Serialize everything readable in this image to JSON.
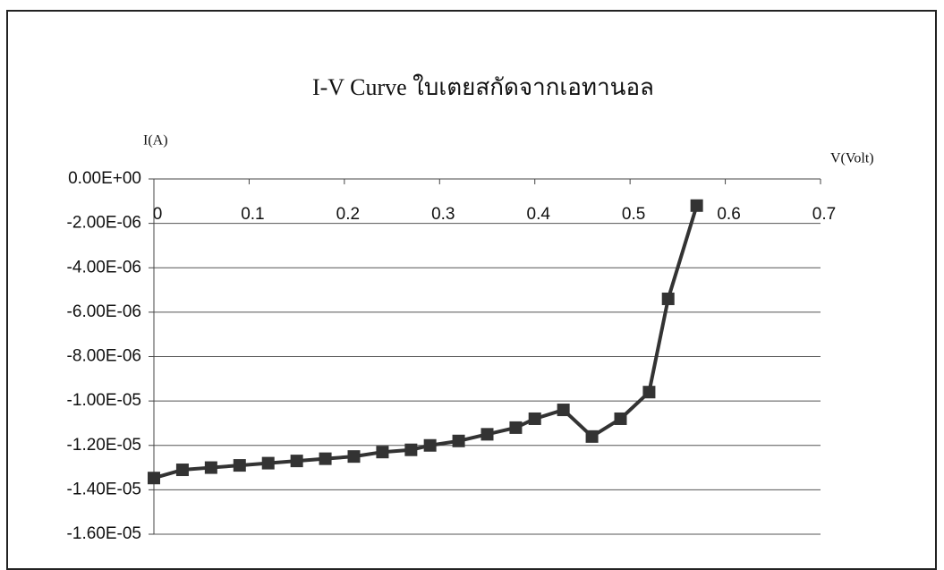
{
  "chart_data": {
    "type": "line",
    "title": "I-V Curve ใบเตยสกัดจากเอทานอล",
    "y_label": "I(A)",
    "x_label": "V(Volt)",
    "x": [
      0,
      0.03,
      0.06,
      0.09,
      0.12,
      0.15,
      0.18,
      0.21,
      0.24,
      0.27,
      0.29,
      0.32,
      0.35,
      0.38,
      0.4,
      0.43,
      0.46,
      0.49,
      0.52,
      0.54,
      0.57
    ],
    "series": [
      {
        "name": "I(A)",
        "color": "#333333",
        "values": [
          -1.347e-05,
          -1.31e-05,
          -1.3e-05,
          -1.29e-05,
          -1.28e-05,
          -1.27e-05,
          -1.26e-05,
          -1.25e-05,
          -1.23e-05,
          -1.22e-05,
          -1.2e-05,
          -1.18e-05,
          -1.15e-05,
          -1.12e-05,
          -1.08e-05,
          -1.04e-05,
          -1.16e-05,
          -1.08e-05,
          -9.6e-06,
          -5.4e-06,
          -1.2e-06
        ]
      }
    ],
    "xlim": [
      0,
      0.7
    ],
    "xticks": [
      0,
      0.1,
      0.2,
      0.3,
      0.4,
      0.5,
      0.6,
      0.7
    ],
    "ylim": [
      -1.6e-05,
      0
    ],
    "yticks": [
      {
        "value": 0,
        "label": "0.00E+00"
      },
      {
        "value": -2e-06,
        "label": "-2.00E-06"
      },
      {
        "value": -4e-06,
        "label": "-4.00E-06"
      },
      {
        "value": -6e-06,
        "label": "-6.00E-06"
      },
      {
        "value": -8e-06,
        "label": "-8.00E-06"
      },
      {
        "value": -1e-05,
        "label": "-1.00E-05"
      },
      {
        "value": -1.2e-05,
        "label": "-1.20E-05"
      },
      {
        "value": -1.4e-05,
        "label": "-1.40E-05"
      },
      {
        "value": -1.6e-05,
        "label": "-1.60E-05"
      }
    ],
    "grid": true
  }
}
